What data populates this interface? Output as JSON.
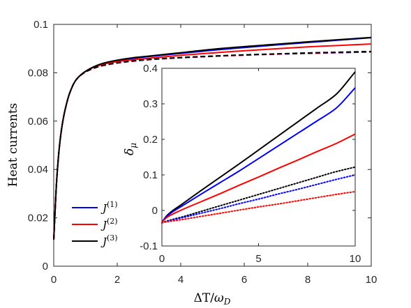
{
  "chart_data": [
    {
      "type": "line",
      "panel": "main",
      "xlabel": "ΔT/ω_D",
      "ylabel": "Heat currents",
      "xlim": [
        0,
        10
      ],
      "ylim": [
        0,
        0.1
      ],
      "xticks": [
        "0",
        "2",
        "4",
        "6",
        "8",
        "10"
      ],
      "yticks": [
        "0",
        "0.02",
        "0.04",
        "0.06",
        "0.08",
        "0.1"
      ],
      "legend": {
        "placement": "lower-left",
        "entries": [
          {
            "label": "J",
            "sup": "(1)",
            "color": "#0000ff"
          },
          {
            "label": "J",
            "sup": "(2)",
            "color": "#ff0000"
          },
          {
            "label": "J",
            "sup": "(3)",
            "color": "#000000"
          }
        ]
      },
      "x": [
        0,
        0.05,
        0.1,
        0.2,
        0.3,
        0.4,
        0.5,
        0.7,
        1.0,
        1.5,
        2.0,
        2.5,
        3,
        4,
        5,
        6,
        7,
        8,
        9,
        10
      ],
      "series": [
        {
          "name": "J(1)",
          "color": "#0000ff",
          "style": "solid",
          "values": [
            0.011,
            0.025,
            0.037,
            0.052,
            0.061,
            0.067,
            0.0715,
            0.077,
            0.0805,
            0.0835,
            0.085,
            0.086,
            0.0867,
            0.088,
            0.0893,
            0.0904,
            0.0915,
            0.0925,
            0.0935,
            0.0945
          ]
        },
        {
          "name": "J(2)",
          "color": "#ff0000",
          "style": "solid",
          "values": [
            0.011,
            0.025,
            0.037,
            0.052,
            0.061,
            0.067,
            0.0715,
            0.077,
            0.0805,
            0.0833,
            0.0846,
            0.0854,
            0.086,
            0.0872,
            0.0882,
            0.0891,
            0.0899,
            0.0907,
            0.0913,
            0.0919
          ]
        },
        {
          "name": "J(3)",
          "color": "#000000",
          "style": "solid",
          "values": [
            0.011,
            0.025,
            0.037,
            0.052,
            0.061,
            0.067,
            0.0715,
            0.077,
            0.0806,
            0.0837,
            0.0852,
            0.0862,
            0.0869,
            0.0883,
            0.0897,
            0.0908,
            0.0918,
            0.0928,
            0.0937,
            0.0946
          ]
        },
        {
          "name": "J(1) dashed",
          "color": "#0000ff",
          "style": "dashed",
          "values": [
            0.011,
            0.025,
            0.037,
            0.052,
            0.061,
            0.067,
            0.0715,
            0.077,
            0.0803,
            0.0828,
            0.084,
            0.0848,
            0.0854,
            0.0862,
            0.0868,
            0.0873,
            0.0877,
            0.088,
            0.0883,
            0.0886
          ]
        },
        {
          "name": "J(2) dashed",
          "color": "#ff0000",
          "style": "dashed",
          "values": [
            0.011,
            0.025,
            0.037,
            0.052,
            0.061,
            0.067,
            0.0715,
            0.077,
            0.0803,
            0.0828,
            0.084,
            0.0848,
            0.0854,
            0.0862,
            0.0868,
            0.0873,
            0.0877,
            0.0881,
            0.0884,
            0.0887
          ]
        },
        {
          "name": "J(3) dashed",
          "color": "#000000",
          "style": "dashed",
          "values": [
            0.011,
            0.025,
            0.037,
            0.052,
            0.061,
            0.067,
            0.0715,
            0.077,
            0.0803,
            0.0829,
            0.0841,
            0.0849,
            0.0855,
            0.0863,
            0.0869,
            0.0874,
            0.0878,
            0.0882,
            0.0885,
            0.0888
          ]
        }
      ]
    },
    {
      "type": "line",
      "panel": "inset",
      "xlabel": "",
      "ylabel": "δ_μ",
      "xlim": [
        0,
        10
      ],
      "ylim": [
        -0.1,
        0.4
      ],
      "xticks": [
        "0",
        "5",
        "10"
      ],
      "yticks": [
        "-0.1",
        "0",
        "0.1",
        "0.2",
        "0.3",
        "0.4"
      ],
      "x": [
        0,
        0.25,
        0.5,
        1,
        2,
        3,
        4,
        5,
        6,
        7,
        8,
        9,
        10
      ],
      "series": [
        {
          "color": "#000000",
          "style": "solid",
          "values": [
            -0.033,
            -0.015,
            -0.003,
            0.016,
            0.055,
            0.093,
            0.131,
            0.17,
            0.209,
            0.248,
            0.287,
            0.326,
            0.39
          ]
        },
        {
          "color": "#0000ff",
          "style": "solid",
          "values": [
            -0.033,
            -0.017,
            -0.006,
            0.011,
            0.045,
            0.078,
            0.111,
            0.146,
            0.181,
            0.216,
            0.251,
            0.287,
            0.345
          ]
        },
        {
          "color": "#ff0000",
          "style": "solid",
          "values": [
            -0.033,
            -0.02,
            -0.012,
            0.001,
            0.024,
            0.047,
            0.071,
            0.094,
            0.118,
            0.141,
            0.165,
            0.188,
            0.215
          ]
        },
        {
          "color": "#000000",
          "style": "dotted",
          "values": [
            -0.035,
            -0.03,
            -0.026,
            -0.019,
            -0.003,
            0.013,
            0.029,
            0.045,
            0.061,
            0.077,
            0.093,
            0.109,
            0.122
          ]
        },
        {
          "color": "#0000ff",
          "style": "dotted",
          "values": [
            -0.035,
            -0.031,
            -0.027,
            -0.021,
            -0.008,
            0.005,
            0.019,
            0.032,
            0.046,
            0.059,
            0.073,
            0.087,
            0.1
          ]
        },
        {
          "color": "#ff0000",
          "style": "dotted",
          "values": [
            -0.035,
            -0.032,
            -0.03,
            -0.026,
            -0.017,
            -0.008,
            0.001,
            0.01,
            0.018,
            0.027,
            0.036,
            0.045,
            0.053
          ]
        }
      ]
    }
  ]
}
